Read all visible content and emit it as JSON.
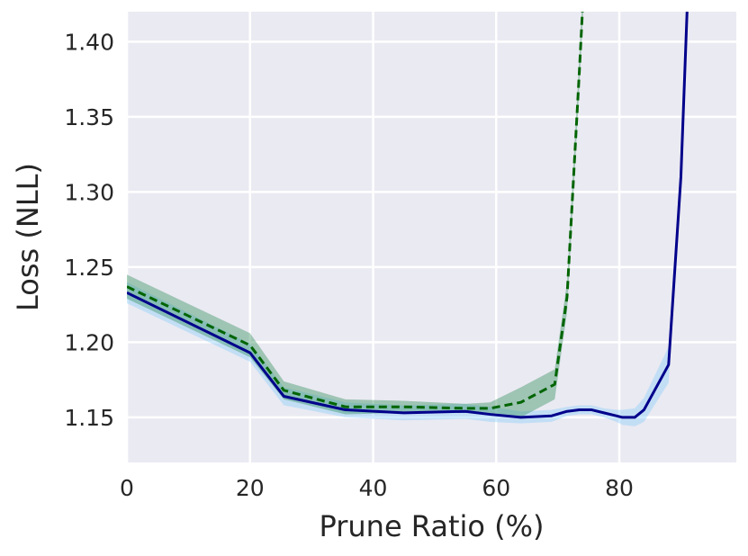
{
  "chart_data": {
    "type": "line",
    "title": "",
    "xlabel": "Prune Ratio (%)",
    "ylabel": "Loss (NLL)",
    "xlim": [
      0,
      99
    ],
    "ylim": [
      1.12,
      1.42
    ],
    "x_ticks": [
      0,
      20,
      40,
      60,
      80
    ],
    "x_tick_labels": [
      "0",
      "20",
      "40",
      "60",
      "80"
    ],
    "y_ticks": [
      1.15,
      1.2,
      1.25,
      1.3,
      1.35,
      1.4
    ],
    "y_tick_labels": [
      "1.15",
      "1.20",
      "1.25",
      "1.30",
      "1.35",
      "1.40"
    ],
    "grid": true,
    "background": "#eaeaf2",
    "series": [
      {
        "color": "#00008b",
        "band_color": "#87cefa",
        "linestyle": "solid",
        "x": [
          0,
          20,
          25.5,
          35.5,
          45,
          55,
          59,
          64,
          69,
          71.5,
          73.5,
          75.5,
          77.5,
          79.5,
          80.5,
          82.5,
          84,
          88,
          90,
          91,
          92
        ],
        "y": [
          1.233,
          1.193,
          1.164,
          1.155,
          1.153,
          1.154,
          1.152,
          1.15,
          1.151,
          1.154,
          1.155,
          1.155,
          1.153,
          1.151,
          1.15,
          1.15,
          1.155,
          1.185,
          1.31,
          1.42,
          1.5
        ],
        "band": [
          0.007,
          0.006,
          0.006,
          0.005,
          0.005,
          0.005,
          0.005,
          0.004,
          0.004,
          0.003,
          0.003,
          0.003,
          0.003,
          0.004,
          0.005,
          0.006,
          0.008,
          0.012,
          0.01,
          0.01,
          0.01
        ]
      },
      {
        "color": "#006400",
        "band_color": "#2e8b57",
        "linestyle": "dashed",
        "x": [
          0,
          20,
          25.5,
          35.5,
          45,
          55,
          59,
          64,
          69.5,
          71.5,
          73.5,
          74.5
        ],
        "y": [
          1.237,
          1.198,
          1.168,
          1.157,
          1.157,
          1.156,
          1.156,
          1.16,
          1.172,
          1.23,
          1.38,
          1.46
        ],
        "band": [
          0.008,
          0.008,
          0.006,
          0.005,
          0.004,
          0.003,
          0.004,
          0.01,
          0.01,
          0.01,
          0.01,
          0.01
        ]
      }
    ]
  }
}
